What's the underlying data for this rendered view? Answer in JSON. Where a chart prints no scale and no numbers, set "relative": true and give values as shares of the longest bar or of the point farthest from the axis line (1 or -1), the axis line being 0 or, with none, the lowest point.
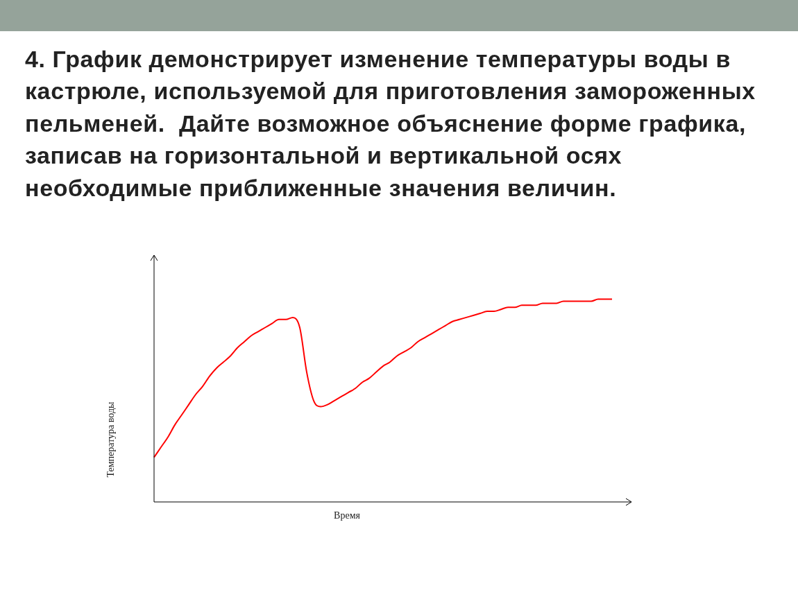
{
  "chart_data": {
    "type": "line",
    "relative": true,
    "title": "4. График демонстрирует изменение температуры воды в кастрюле, используемой для приготовления замороженных пельменей.  Дайте возможное объяснение форме графика, записав на горизонтальной и вертикальной осях необходимые приближенные значения величин.",
    "xlabel": "Время",
    "ylabel": "Температура воды",
    "categories": [
      null,
      null,
      null,
      null,
      null,
      null,
      null,
      null,
      null,
      null,
      null,
      null,
      null,
      null,
      null,
      null,
      null,
      null,
      null,
      null,
      null,
      null,
      null,
      null,
      null,
      null,
      null,
      null,
      null,
      null,
      null,
      null,
      null,
      null,
      null,
      null,
      null,
      null,
      null,
      null,
      null,
      null,
      null,
      null,
      null,
      null,
      null,
      null,
      null,
      null,
      null,
      null,
      null,
      null,
      null,
      null,
      null,
      null,
      null,
      null,
      null,
      null,
      null,
      null,
      null,
      null,
      null
    ],
    "series": [
      {
        "color": "#ff0000",
        "values": [
          0.22,
          0.27,
          0.32,
          0.38,
          0.43,
          0.48,
          0.53,
          0.57,
          0.62,
          0.66,
          0.69,
          0.72,
          0.76,
          0.79,
          0.82,
          0.84,
          0.86,
          0.88,
          0.9,
          0.9,
          0.91,
          0.86,
          0.64,
          0.5,
          0.47,
          0.48,
          0.5,
          0.52,
          0.54,
          0.56,
          0.59,
          0.61,
          0.64,
          0.67,
          0.69,
          0.72,
          0.74,
          0.76,
          0.79,
          0.81,
          0.83,
          0.85,
          0.87,
          0.89,
          0.9,
          0.91,
          0.92,
          0.93,
          0.94,
          0.94,
          0.95,
          0.96,
          0.96,
          0.97,
          0.97,
          0.97,
          0.98,
          0.98,
          0.98,
          0.99,
          0.99,
          0.99,
          0.99,
          0.99,
          1,
          1,
          1
        ]
      }
    ],
    "legend": false,
    "grid": false,
    "marker": "none",
    "line_style": "solid"
  }
}
